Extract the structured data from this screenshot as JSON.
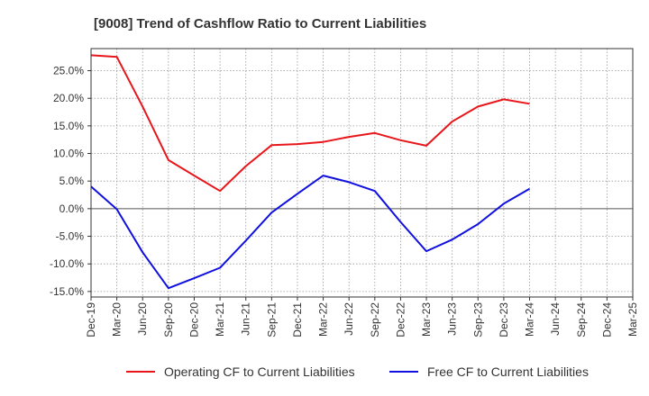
{
  "chart_data": {
    "type": "line",
    "title": "[9008]  Trend of Cashflow Ratio to Current Liabilities",
    "xlabel": "",
    "ylabel": "",
    "categories": [
      "Dec-19",
      "Mar-20",
      "Jun-20",
      "Sep-20",
      "Dec-20",
      "Mar-21",
      "Jun-21",
      "Sep-21",
      "Dec-21",
      "Mar-22",
      "Jun-22",
      "Sep-22",
      "Dec-22",
      "Mar-23",
      "Jun-23",
      "Sep-23",
      "Dec-23",
      "Mar-24",
      "Jun-24",
      "Sep-24",
      "Dec-24",
      "Mar-25"
    ],
    "y_ticks": [
      -15,
      -10,
      -5,
      0,
      5,
      10,
      15,
      20,
      25
    ],
    "y_tick_labels": [
      "-15.0%",
      "-10.0%",
      "-5.0%",
      "0.0%",
      "5.0%",
      "10.0%",
      "15.0%",
      "20.0%",
      "25.0%"
    ],
    "ylim": [
      -16,
      29
    ],
    "grid": true,
    "legend_position": "bottom",
    "series": [
      {
        "name": "Operating CF to Current Liabilities",
        "color": "#e8161b",
        "values": [
          27.8,
          27.5,
          18.5,
          8.8,
          6.0,
          3.2,
          7.7,
          11.5,
          11.7,
          12.1,
          13.0,
          13.7,
          12.4,
          11.4,
          15.8,
          18.5,
          19.8,
          19.0,
          null,
          null,
          null,
          null
        ]
      },
      {
        "name": "Free CF to Current Liabilities",
        "color": "#1010e0",
        "values": [
          4.0,
          -0.1,
          -7.9,
          -14.4,
          -12.6,
          -10.7,
          -5.8,
          -0.7,
          2.7,
          6.0,
          4.8,
          3.2,
          -2.4,
          -7.7,
          -5.6,
          -2.8,
          0.9,
          3.6,
          null,
          null,
          null,
          null
        ]
      }
    ]
  }
}
